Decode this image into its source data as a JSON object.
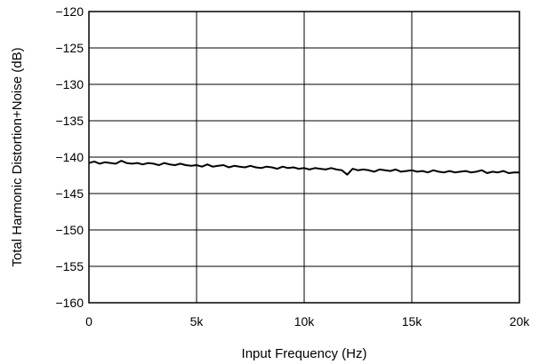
{
  "chart_data": {
    "type": "line",
    "title": "",
    "xlabel": "Input Frequency (Hz)",
    "ylabel": "Total Harmonic Distortion+Noise (dB)",
    "xlim": [
      0,
      20000
    ],
    "ylim": [
      -160,
      -120
    ],
    "grid": true,
    "x_ticks": [
      {
        "value": 0,
        "label": "0"
      },
      {
        "value": 5000,
        "label": "5k"
      },
      {
        "value": 10000,
        "label": "10k"
      },
      {
        "value": 15000,
        "label": "15k"
      },
      {
        "value": 20000,
        "label": "20k"
      }
    ],
    "y_ticks": [
      {
        "value": -120,
        "label": "−120"
      },
      {
        "value": -125,
        "label": "−125"
      },
      {
        "value": -130,
        "label": "−130"
      },
      {
        "value": -135,
        "label": "−135"
      },
      {
        "value": -140,
        "label": "−140"
      },
      {
        "value": -145,
        "label": "−145"
      },
      {
        "value": -150,
        "label": "−150"
      },
      {
        "value": -155,
        "label": "−155"
      },
      {
        "value": -160,
        "label": "−160"
      }
    ],
    "series": [
      {
        "color": "#000000",
        "x": [
          0,
          250,
          500,
          750,
          1000,
          1250,
          1500,
          1750,
          2000,
          2250,
          2500,
          2750,
          3000,
          3250,
          3500,
          3750,
          4000,
          4250,
          4500,
          4750,
          5000,
          5250,
          5500,
          5750,
          6000,
          6250,
          6500,
          6750,
          7000,
          7250,
          7500,
          7750,
          8000,
          8250,
          8500,
          8750,
          9000,
          9250,
          9500,
          9750,
          10000,
          10250,
          10500,
          10750,
          11000,
          11250,
          11500,
          11750,
          12000,
          12250,
          12500,
          12750,
          13000,
          13250,
          13500,
          13750,
          14000,
          14250,
          14500,
          14750,
          15000,
          15250,
          15500,
          15750,
          16000,
          16250,
          16500,
          16750,
          17000,
          17250,
          17500,
          17750,
          18000,
          18250,
          18500,
          18750,
          19000,
          19250,
          19500,
          19750,
          20000
        ],
        "y": [
          -140.8,
          -140.6,
          -140.9,
          -140.7,
          -140.8,
          -140.9,
          -140.5,
          -140.8,
          -140.9,
          -140.8,
          -141.0,
          -140.8,
          -140.9,
          -141.1,
          -140.8,
          -141.0,
          -141.1,
          -140.9,
          -141.1,
          -141.2,
          -141.1,
          -141.3,
          -141.0,
          -141.3,
          -141.2,
          -141.1,
          -141.4,
          -141.2,
          -141.3,
          -141.4,
          -141.2,
          -141.4,
          -141.5,
          -141.3,
          -141.4,
          -141.6,
          -141.3,
          -141.5,
          -141.4,
          -141.6,
          -141.5,
          -141.7,
          -141.5,
          -141.6,
          -141.7,
          -141.5,
          -141.7,
          -141.8,
          -142.4,
          -141.6,
          -141.8,
          -141.7,
          -141.8,
          -142.0,
          -141.7,
          -141.8,
          -141.9,
          -141.7,
          -142.0,
          -141.9,
          -141.8,
          -142.0,
          -141.9,
          -142.1,
          -141.8,
          -142.0,
          -142.1,
          -141.9,
          -142.1,
          -142.0,
          -141.9,
          -142.1,
          -142.0,
          -141.8,
          -142.2,
          -142.0,
          -142.1,
          -141.9,
          -142.2,
          -142.1,
          -142.1
        ]
      }
    ]
  }
}
